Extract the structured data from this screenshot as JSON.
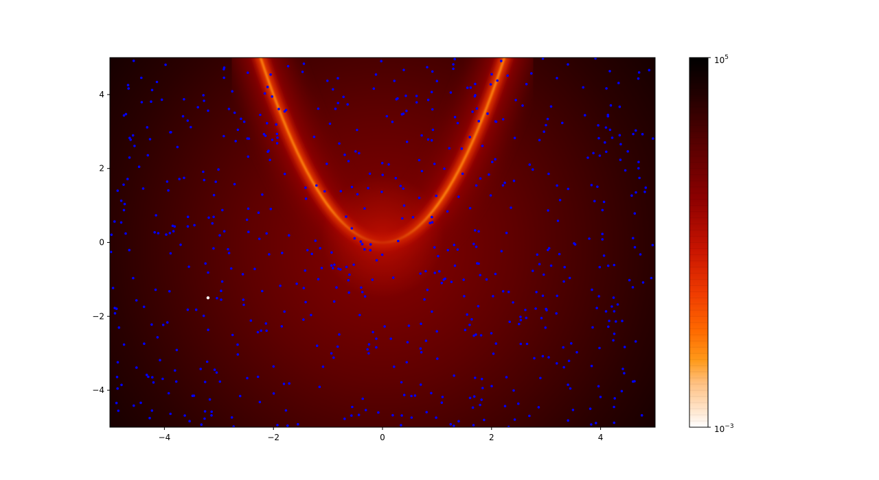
{
  "chart_data": [
    {
      "type": "heatmap",
      "title": "",
      "xlabel": "",
      "ylabel": "",
      "xlim": [
        -5,
        5
      ],
      "ylim": [
        -5,
        5
      ],
      "grid": false,
      "x_ticks": [
        -4,
        -2,
        0,
        2,
        4
      ],
      "y_ticks": [
        -4,
        -2,
        0,
        2,
        4
      ],
      "x_tick_labels": [
        "−4",
        "−2",
        "0",
        "2",
        "4"
      ],
      "y_tick_labels": [
        "−4",
        "−2",
        "0",
        "2",
        "4"
      ],
      "surface": {
        "description": "filled log-scale contour of a Rosenbrock-like valley with minimum near (0,0), valley curve y ≈ x²",
        "valley_curve": [
          [
            -2.25,
            5.0
          ],
          [
            -1.8,
            3.2
          ],
          [
            -1.2,
            1.44
          ],
          [
            -0.6,
            0.36
          ],
          [
            0,
            0
          ],
          [
            0.6,
            0.36
          ],
          [
            1.2,
            1.44
          ],
          [
            1.8,
            3.2
          ],
          [
            2.25,
            5.0
          ]
        ]
      },
      "scatter_series": [
        {
          "color": "#0000ff",
          "count": 650,
          "distribution": "uniform random over [-5,5]×[-5,5]"
        },
        {
          "color": "#ffffff",
          "points": [
            [
              -3.2,
              -1.5
            ]
          ]
        }
      ],
      "colorbar": {
        "scale": "log",
        "min": 0.001,
        "max": 100000,
        "tick_labels": [
          "10",
          "10"
        ],
        "tick_exponents": [
          "−3",
          "5"
        ],
        "colormap": "gist_heat_r"
      }
    }
  ]
}
